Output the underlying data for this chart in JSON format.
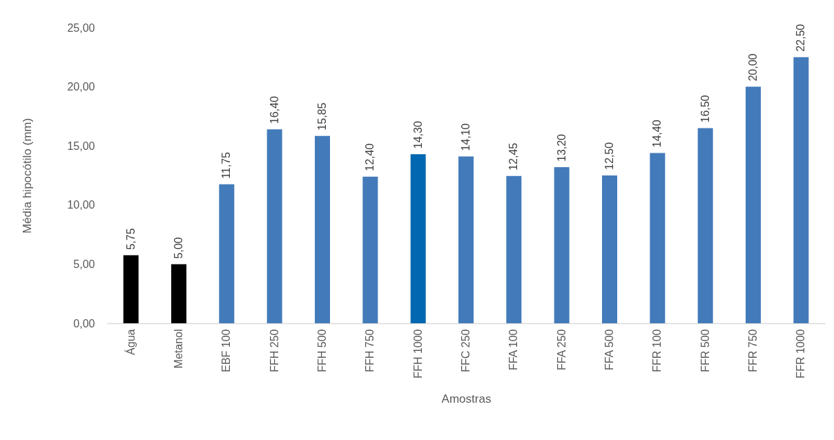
{
  "chart_data": {
    "type": "bar",
    "categories": [
      "Água",
      "Metanol",
      "EBF 100",
      "FFH 250",
      "FFH 500",
      "FFH 750",
      "FFH 1000",
      "FFC 250",
      "FFA 100",
      "FFA 250",
      "FFA 500",
      "FFR 100",
      "FFR 500",
      "FFR 750",
      "FFR 1000"
    ],
    "values": [
      5.75,
      5.0,
      11.75,
      16.4,
      15.85,
      12.4,
      14.3,
      14.1,
      12.45,
      13.2,
      12.5,
      14.4,
      16.5,
      20.0,
      22.5
    ],
    "value_labels": [
      "5,75",
      "5,00",
      "11,75",
      "16,40",
      "15,85",
      "12,40",
      "14,30",
      "14,10",
      "12,45",
      "13,20",
      "12,50",
      "14,40",
      "16,50",
      "20,00",
      "22,50"
    ],
    "colors": [
      "#000000",
      "#000000",
      "#437bba",
      "#437bba",
      "#437bba",
      "#437bba",
      "#0067b0",
      "#437bba",
      "#437bba",
      "#437bba",
      "#437bba",
      "#437bba",
      "#437bba",
      "#437bba",
      "#437bba"
    ],
    "xlabel": "Amostras",
    "ylabel": "Média hipocótilo (mm)",
    "ylim": [
      0,
      25
    ],
    "yticks": [
      {
        "value": 0,
        "label": "0,00"
      },
      {
        "value": 5,
        "label": "5,00"
      },
      {
        "value": 10,
        "label": "10,00"
      },
      {
        "value": 15,
        "label": "15,00"
      },
      {
        "value": 20,
        "label": "20,00"
      },
      {
        "value": 25,
        "label": "25,00"
      }
    ],
    "grid": false
  }
}
